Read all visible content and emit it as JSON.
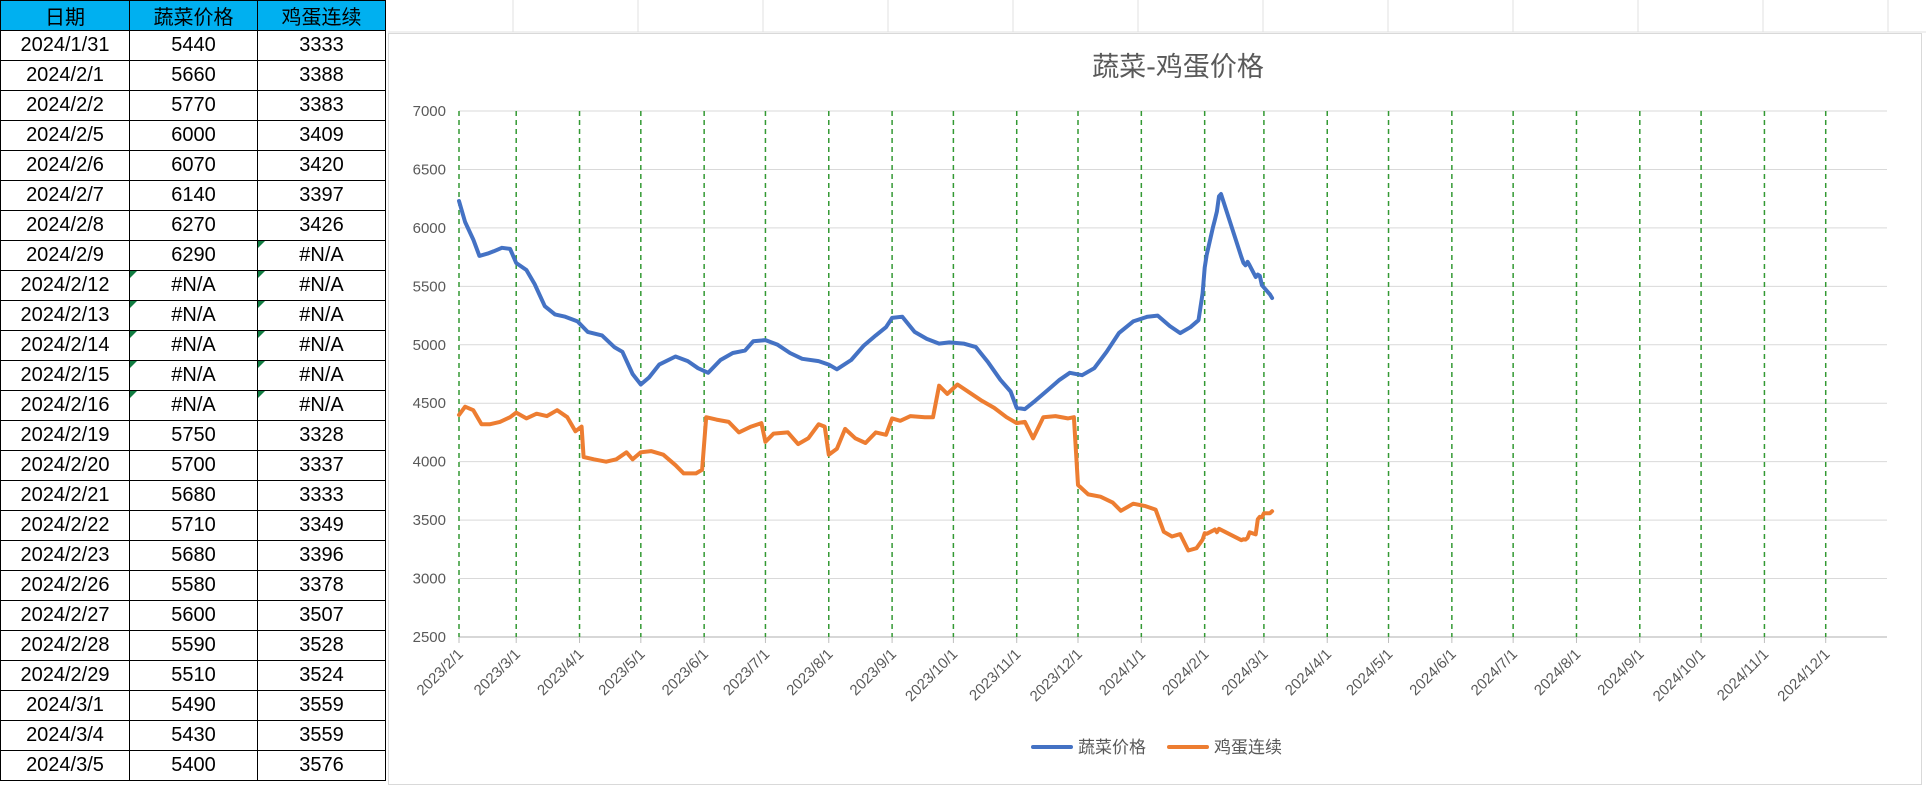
{
  "table": {
    "headers": [
      "日期",
      "蔬菜价格",
      "鸡蛋连续"
    ],
    "rows": [
      [
        "2024/1/31",
        "5440",
        "3333"
      ],
      [
        "2024/2/1",
        "5660",
        "3388"
      ],
      [
        "2024/2/2",
        "5770",
        "3383"
      ],
      [
        "2024/2/5",
        "6000",
        "3409"
      ],
      [
        "2024/2/6",
        "6070",
        "3420"
      ],
      [
        "2024/2/7",
        "6140",
        "3397"
      ],
      [
        "2024/2/8",
        "6270",
        "3426"
      ],
      [
        "2024/2/9",
        "6290",
        "#N/A"
      ],
      [
        "2024/2/12",
        "#N/A",
        "#N/A"
      ],
      [
        "2024/2/13",
        "#N/A",
        "#N/A"
      ],
      [
        "2024/2/14",
        "#N/A",
        "#N/A"
      ],
      [
        "2024/2/15",
        "#N/A",
        "#N/A"
      ],
      [
        "2024/2/16",
        "#N/A",
        "#N/A"
      ],
      [
        "2024/2/19",
        "5750",
        "3328"
      ],
      [
        "2024/2/20",
        "5700",
        "3337"
      ],
      [
        "2024/2/21",
        "5680",
        "3333"
      ],
      [
        "2024/2/22",
        "5710",
        "3349"
      ],
      [
        "2024/2/23",
        "5680",
        "3396"
      ],
      [
        "2024/2/26",
        "5580",
        "3378"
      ],
      [
        "2024/2/27",
        "5600",
        "3507"
      ],
      [
        "2024/2/28",
        "5590",
        "3528"
      ],
      [
        "2024/2/29",
        "5510",
        "3524"
      ],
      [
        "2024/3/1",
        "5490",
        "3559"
      ],
      [
        "2024/3/4",
        "5430",
        "3559"
      ],
      [
        "2024/3/5",
        "5400",
        "3576"
      ]
    ],
    "header_color": "#00b0f0",
    "error_marker_color": "#107c41"
  },
  "chart_data": {
    "type": "line",
    "title": "蔬菜-鸡蛋价格",
    "xlabel": "",
    "ylabel": "",
    "ylim": [
      2500,
      7000
    ],
    "yticks": [
      "2500",
      "3000",
      "3500",
      "4000",
      "4500",
      "5000",
      "5500",
      "6000",
      "6500",
      "7000"
    ],
    "x_tick_labels": [
      "2023/2/1",
      "2023/3/1",
      "2023/4/1",
      "2023/5/1",
      "2023/6/1",
      "2023/7/1",
      "2023/8/1",
      "2023/9/1",
      "2023/10/1",
      "2023/11/1",
      "2023/12/1",
      "2024/1/1",
      "2024/2/1",
      "2024/3/1",
      "2024/4/1",
      "2024/5/1",
      "2024/6/1",
      "2024/7/1",
      "2024/8/1",
      "2024/9/1",
      "2024/10/1",
      "2024/11/1",
      "2024/12/1"
    ],
    "xlim": [
      "2023/2/1",
      "2024/12/31"
    ],
    "grid": "vertical dashed green at month starts, horizontal light gray",
    "legend_position": "bottom",
    "series": [
      {
        "name": "蔬菜价格",
        "color": "#4472c4",
        "points": [
          [
            "2023/2/1",
            6230
          ],
          [
            "2023/2/4",
            6050
          ],
          [
            "2023/2/8",
            5900
          ],
          [
            "2023/2/11",
            5760
          ],
          [
            "2023/2/15",
            5780
          ],
          [
            "2023/2/18",
            5800
          ],
          [
            "2023/2/22",
            5830
          ],
          [
            "2023/2/26",
            5820
          ],
          [
            "2023/3/1",
            5700
          ],
          [
            "2023/3/6",
            5640
          ],
          [
            "2023/3/10",
            5520
          ],
          [
            "2023/3/15",
            5330
          ],
          [
            "2023/3/20",
            5260
          ],
          [
            "2023/3/25",
            5240
          ],
          [
            "2023/3/31",
            5200
          ],
          [
            "2023/4/5",
            5110
          ],
          [
            "2023/4/12",
            5080
          ],
          [
            "2023/4/18",
            4980
          ],
          [
            "2023/4/22",
            4940
          ],
          [
            "2023/4/27",
            4750
          ],
          [
            "2023/5/1",
            4660
          ],
          [
            "2023/5/5",
            4720
          ],
          [
            "2023/5/10",
            4830
          ],
          [
            "2023/5/18",
            4900
          ],
          [
            "2023/5/24",
            4860
          ],
          [
            "2023/5/29",
            4800
          ],
          [
            "2023/6/3",
            4760
          ],
          [
            "2023/6/9",
            4870
          ],
          [
            "2023/6/15",
            4930
          ],
          [
            "2023/6/21",
            4950
          ],
          [
            "2023/6/25",
            5030
          ],
          [
            "2023/7/1",
            5040
          ],
          [
            "2023/7/7",
            5000
          ],
          [
            "2023/7/13",
            4930
          ],
          [
            "2023/7/19",
            4880
          ],
          [
            "2023/7/27",
            4860
          ],
          [
            "2023/8/1",
            4830
          ],
          [
            "2023/8/5",
            4790
          ],
          [
            "2023/8/12",
            4870
          ],
          [
            "2023/8/18",
            4990
          ],
          [
            "2023/8/24",
            5080
          ],
          [
            "2023/8/29",
            5150
          ],
          [
            "2023/9/1",
            5230
          ],
          [
            "2023/9/6",
            5240
          ],
          [
            "2023/9/12",
            5110
          ],
          [
            "2023/9/18",
            5050
          ],
          [
            "2023/9/24",
            5010
          ],
          [
            "2023/9/29",
            5020
          ],
          [
            "2023/10/6",
            5010
          ],
          [
            "2023/10/12",
            4980
          ],
          [
            "2023/10/18",
            4850
          ],
          [
            "2023/10/24",
            4700
          ],
          [
            "2023/10/29",
            4600
          ],
          [
            "2023/11/1",
            4460
          ],
          [
            "2023/11/5",
            4450
          ],
          [
            "2023/11/10",
            4520
          ],
          [
            "2023/11/16",
            4610
          ],
          [
            "2023/11/22",
            4700
          ],
          [
            "2023/11/27",
            4760
          ],
          [
            "2023/12/3",
            4740
          ],
          [
            "2023/12/9",
            4800
          ],
          [
            "2023/12/15",
            4940
          ],
          [
            "2023/12/21",
            5100
          ],
          [
            "2023/12/28",
            5200
          ],
          [
            "2024/1/4",
            5240
          ],
          [
            "2024/1/9",
            5250
          ],
          [
            "2024/1/15",
            5160
          ],
          [
            "2024/1/20",
            5100
          ],
          [
            "2024/1/25",
            5150
          ],
          [
            "2024/1/29",
            5210
          ],
          [
            "2024/1/31",
            5440
          ],
          [
            "2024/2/1",
            5660
          ],
          [
            "2024/2/2",
            5770
          ],
          [
            "2024/2/5",
            6000
          ],
          [
            "2024/2/6",
            6070
          ],
          [
            "2024/2/7",
            6140
          ],
          [
            "2024/2/8",
            6270
          ],
          [
            "2024/2/9",
            6290
          ],
          [
            "2024/2/19",
            5750
          ],
          [
            "2024/2/20",
            5700
          ],
          [
            "2024/2/21",
            5680
          ],
          [
            "2024/2/22",
            5710
          ],
          [
            "2024/2/23",
            5680
          ],
          [
            "2024/2/26",
            5580
          ],
          [
            "2024/2/27",
            5600
          ],
          [
            "2024/2/28",
            5590
          ],
          [
            "2024/2/29",
            5510
          ],
          [
            "2024/3/1",
            5490
          ],
          [
            "2024/3/4",
            5430
          ],
          [
            "2024/3/5",
            5400
          ]
        ]
      },
      {
        "name": "鸡蛋连续",
        "color": "#ed7d31",
        "points": [
          [
            "2023/2/1",
            4400
          ],
          [
            "2023/2/4",
            4470
          ],
          [
            "2023/2/8",
            4440
          ],
          [
            "2023/2/12",
            4320
          ],
          [
            "2023/2/16",
            4320
          ],
          [
            "2023/2/21",
            4340
          ],
          [
            "2023/2/26",
            4380
          ],
          [
            "2023/3/1",
            4420
          ],
          [
            "2023/3/6",
            4370
          ],
          [
            "2023/3/11",
            4410
          ],
          [
            "2023/3/16",
            4390
          ],
          [
            "2023/3/21",
            4440
          ],
          [
            "2023/3/26",
            4380
          ],
          [
            "2023/3/30",
            4260
          ],
          [
            "2023/4/2",
            4300
          ],
          [
            "2023/4/3",
            4040
          ],
          [
            "2023/4/8",
            4020
          ],
          [
            "2023/4/14",
            4000
          ],
          [
            "2023/4/19",
            4020
          ],
          [
            "2023/4/24",
            4080
          ],
          [
            "2023/4/27",
            4020
          ],
          [
            "2023/5/1",
            4080
          ],
          [
            "2023/5/6",
            4090
          ],
          [
            "2023/5/12",
            4060
          ],
          [
            "2023/5/18",
            3970
          ],
          [
            "2023/5/22",
            3900
          ],
          [
            "2023/5/28",
            3900
          ],
          [
            "2023/5/31",
            3930
          ],
          [
            "2023/6/2",
            4380
          ],
          [
            "2023/6/7",
            4360
          ],
          [
            "2023/6/13",
            4340
          ],
          [
            "2023/6/18",
            4250
          ],
          [
            "2023/6/24",
            4300
          ],
          [
            "2023/6/29",
            4330
          ],
          [
            "2023/7/1",
            4170
          ],
          [
            "2023/7/5",
            4240
          ],
          [
            "2023/7/12",
            4250
          ],
          [
            "2023/7/17",
            4150
          ],
          [
            "2023/7/22",
            4200
          ],
          [
            "2023/7/27",
            4320
          ],
          [
            "2023/7/30",
            4300
          ],
          [
            "2023/8/1",
            4060
          ],
          [
            "2023/8/5",
            4110
          ],
          [
            "2023/8/9",
            4280
          ],
          [
            "2023/8/14",
            4200
          ],
          [
            "2023/8/19",
            4160
          ],
          [
            "2023/8/24",
            4250
          ],
          [
            "2023/8/29",
            4230
          ],
          [
            "2023/9/1",
            4370
          ],
          [
            "2023/9/5",
            4350
          ],
          [
            "2023/9/10",
            4390
          ],
          [
            "2023/9/17",
            4380
          ],
          [
            "2023/9/21",
            4380
          ],
          [
            "2023/9/24",
            4650
          ],
          [
            "2023/9/28",
            4580
          ],
          [
            "2023/10/3",
            4660
          ],
          [
            "2023/10/9",
            4590
          ],
          [
            "2023/10/15",
            4520
          ],
          [
            "2023/10/21",
            4460
          ],
          [
            "2023/10/27",
            4380
          ],
          [
            "2023/11/1",
            4330
          ],
          [
            "2023/11/5",
            4340
          ],
          [
            "2023/11/9",
            4200
          ],
          [
            "2023/11/14",
            4380
          ],
          [
            "2023/11/20",
            4390
          ],
          [
            "2023/11/26",
            4370
          ],
          [
            "2023/11/29",
            4380
          ],
          [
            "2023/12/1",
            3800
          ],
          [
            "2023/12/6",
            3720
          ],
          [
            "2023/12/12",
            3700
          ],
          [
            "2023/12/18",
            3650
          ],
          [
            "2023/12/22",
            3580
          ],
          [
            "2023/12/28",
            3640
          ],
          [
            "2024/1/3",
            3620
          ],
          [
            "2024/1/8",
            3590
          ],
          [
            "2024/1/12",
            3400
          ],
          [
            "2024/1/16",
            3360
          ],
          [
            "2024/1/20",
            3380
          ],
          [
            "2024/1/24",
            3240
          ],
          [
            "2024/1/28",
            3260
          ],
          [
            "2024/1/31",
            3333
          ],
          [
            "2024/2/1",
            3388
          ],
          [
            "2024/2/2",
            3383
          ],
          [
            "2024/2/5",
            3409
          ],
          [
            "2024/2/6",
            3420
          ],
          [
            "2024/2/7",
            3397
          ],
          [
            "2024/2/8",
            3426
          ],
          [
            "2024/2/19",
            3328
          ],
          [
            "2024/2/20",
            3337
          ],
          [
            "2024/2/21",
            3333
          ],
          [
            "2024/2/22",
            3349
          ],
          [
            "2024/2/23",
            3396
          ],
          [
            "2024/2/26",
            3378
          ],
          [
            "2024/2/27",
            3507
          ],
          [
            "2024/2/28",
            3528
          ],
          [
            "2024/2/29",
            3524
          ],
          [
            "2024/3/1",
            3559
          ],
          [
            "2024/3/4",
            3559
          ],
          [
            "2024/3/5",
            3576
          ]
        ]
      }
    ]
  }
}
